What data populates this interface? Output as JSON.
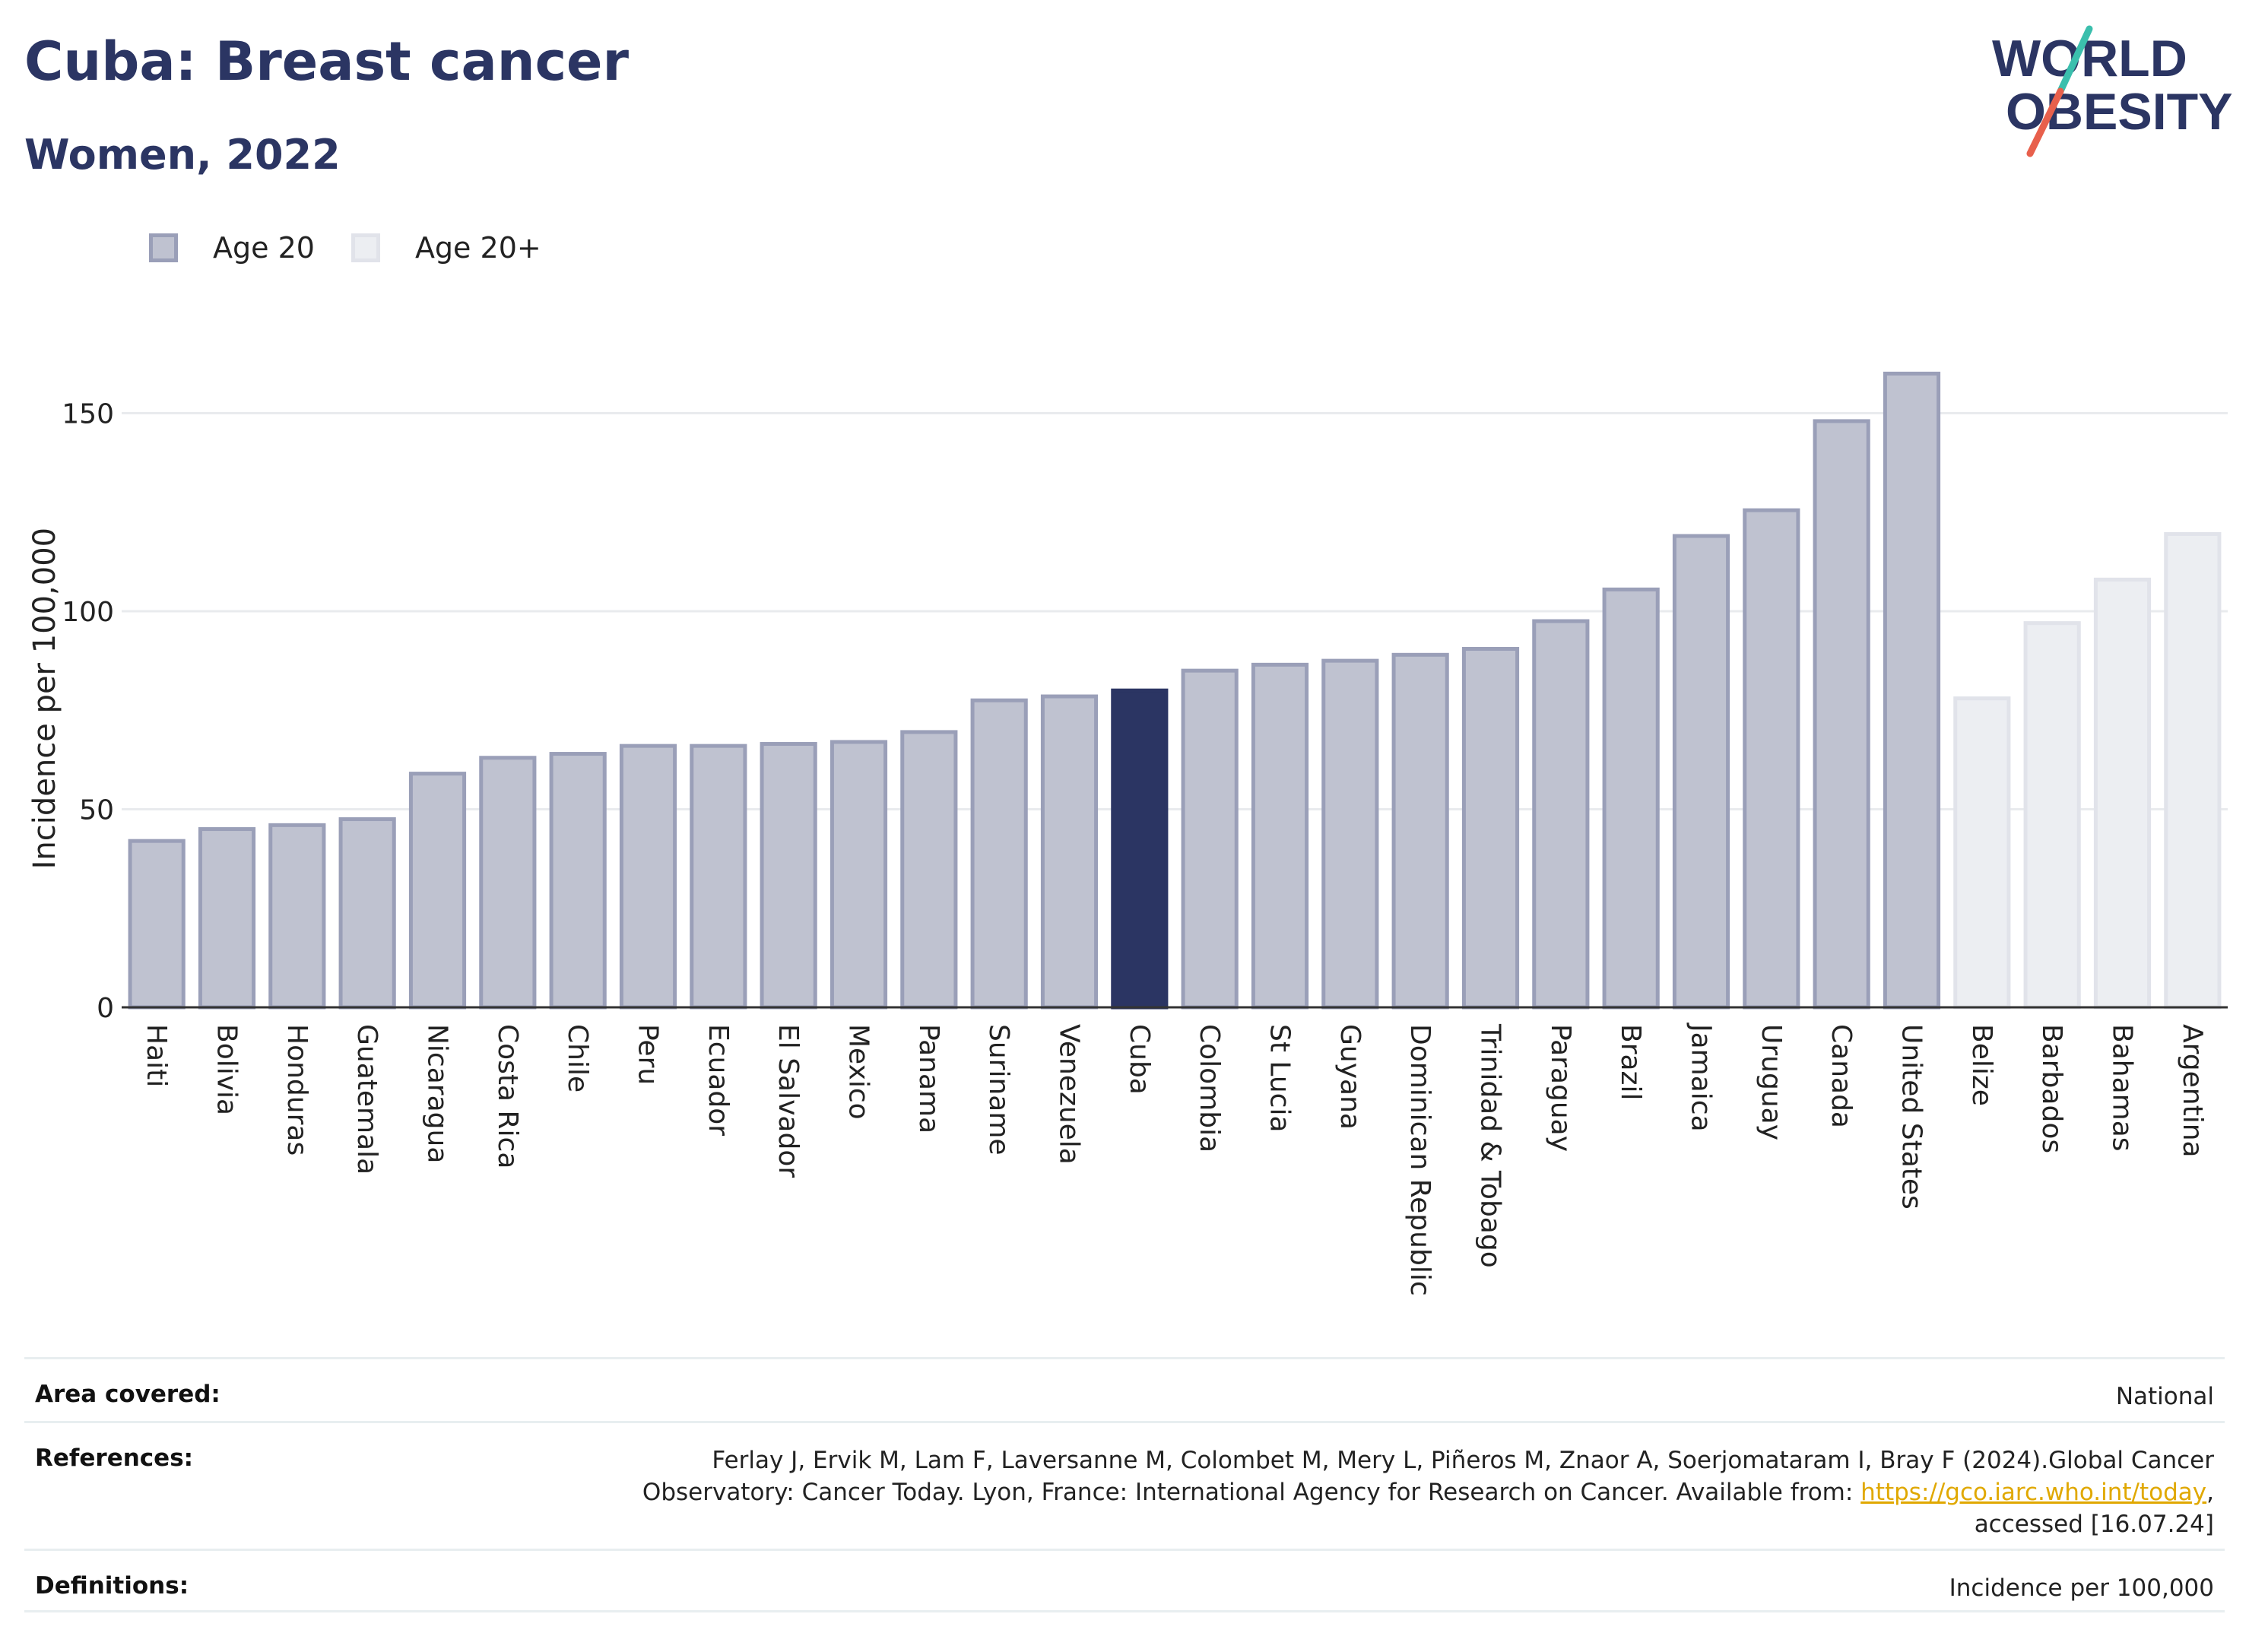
{
  "header": {
    "title": "Cuba: Breast cancer",
    "subtitle": "Women, 2022"
  },
  "logo": {
    "line1": "WORLD",
    "line2": "OBESITY",
    "slash_colors": [
      "#3bbfad",
      "#e8604c"
    ]
  },
  "colors": {
    "accent": "#2b3563",
    "age20_fill": "#bfc2d0",
    "age20_border": "#9a9fb8",
    "age20plus_fill": "#eceef2",
    "age20plus_border": "#e1e3ea",
    "grid": "#e9ebee"
  },
  "legend": {
    "items": [
      {
        "label": "Age 20"
      },
      {
        "label": "Age 20+"
      }
    ]
  },
  "chart_data": {
    "type": "bar",
    "ylabel": "Incidence per 100,000",
    "ylim": [
      0,
      175
    ],
    "yticks": [
      0,
      50,
      100,
      150
    ],
    "grid": true,
    "legend_placement": "top-left",
    "highlight": "Cuba",
    "categories": [
      "Haiti",
      "Bolivia",
      "Honduras",
      "Guatemala",
      "Nicaragua",
      "Costa Rica",
      "Chile",
      "Peru",
      "Ecuador",
      "El Salvador",
      "Mexico",
      "Panama",
      "Suriname",
      "Venezuela",
      "Cuba",
      "Colombia",
      "St Lucia",
      "Guyana",
      "Dominican Republic",
      "Trinidad & Tobago",
      "Paraguay",
      "Brazil",
      "Jamaica",
      "Uruguay",
      "Canada",
      "United States",
      "Belize",
      "Barbados",
      "Bahamas",
      "Argentina"
    ],
    "values": [
      42,
      45,
      46,
      47.5,
      59,
      63,
      64,
      66,
      66,
      66.5,
      67,
      69.5,
      77.5,
      78.5,
      80,
      85,
      86.5,
      87.5,
      89,
      90.5,
      97.5,
      105.5,
      119,
      125.5,
      148,
      160,
      78,
      97,
      108,
      119.5
    ],
    "groups": [
      "Age 20",
      "Age 20",
      "Age 20",
      "Age 20",
      "Age 20",
      "Age 20",
      "Age 20",
      "Age 20",
      "Age 20",
      "Age 20",
      "Age 20",
      "Age 20",
      "Age 20",
      "Age 20",
      "Age 20",
      "Age 20",
      "Age 20",
      "Age 20",
      "Age 20",
      "Age 20",
      "Age 20",
      "Age 20",
      "Age 20",
      "Age 20",
      "Age 20",
      "Age 20",
      "Age 20+",
      "Age 20+",
      "Age 20+",
      "Age 20+"
    ]
  },
  "info": {
    "area_label": "Area covered:",
    "area_value": "National",
    "references_label": "References:",
    "references_text": "Ferlay J, Ervik M, Lam F, Laversanne M, Colombet M, Mery L, Piñeros M, Znaor A, Soerjomataram I, Bray F (2024).Global Cancer Observatory: Cancer Today. Lyon, France: International Agency for Research on Cancer. Available from:",
    "references_link": "https://gco.iarc.who.int/today",
    "references_tail": ", accessed [16.07.24]",
    "definitions_label": "Definitions:",
    "definitions_value": "Incidence per 100,000"
  }
}
